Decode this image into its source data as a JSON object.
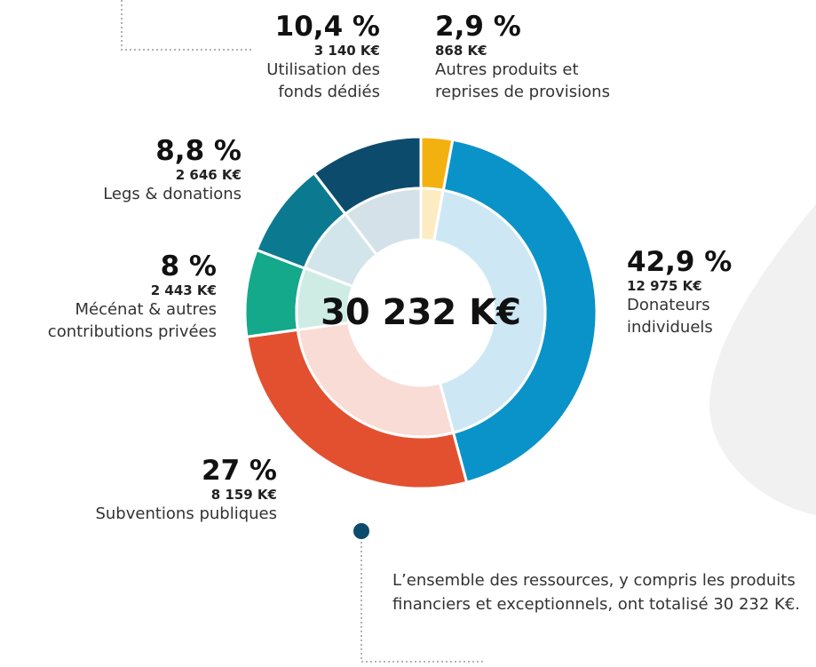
{
  "chart_data": {
    "type": "donut",
    "categories": [
      "Autres produits et\nreprises de provisions",
      "Donateurs\nindividuels",
      "Subventions publiques",
      "Mécénat & autres\ncontributions privées",
      "Legs & donations",
      "Utilisation des\nfonds dédiés"
    ],
    "values": [
      2.9,
      42.9,
      27,
      8,
      8.8,
      10.4
    ],
    "value_labels": [
      "2,9 %",
      "42,9 %",
      "27 %",
      "8 %",
      "8,8 %",
      "10,4 %"
    ],
    "amounts": [
      868,
      12975,
      8159,
      2443,
      2646,
      3140
    ],
    "amount_labels": [
      "868 K€",
      "12 975 K€",
      "8 159 K€",
      "2 443 K€",
      "2 646 K€",
      "3 140 K€"
    ],
    "colors": [
      "#f3b10f",
      "#0a93c8",
      "#e3502f",
      "#13a98a",
      "#0b7a90",
      "#0d4b6c"
    ],
    "inner_colors": [
      "#fdecc2",
      "#cde8f4",
      "#f9dcd5",
      "#cfece4",
      "#d2e5ea",
      "#d4e1e9"
    ],
    "center_label": "30 232 K€",
    "note": "L’ensemble des ressources, y compris les produits financiers et exceptionnels, ont totalisé 30 232 K€."
  }
}
